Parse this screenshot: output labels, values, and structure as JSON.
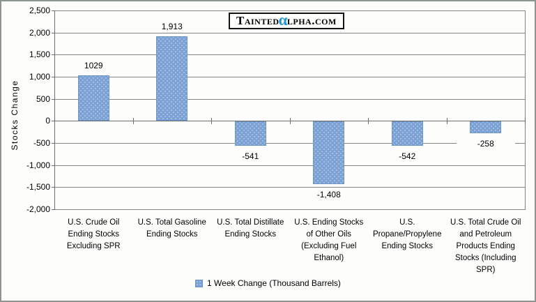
{
  "logo": {
    "prefix": "Tainted",
    "alpha": "α",
    "suffix": "lpha.com"
  },
  "chart_data": {
    "type": "bar",
    "title": "",
    "xlabel": "",
    "ylabel": "Stocks Change",
    "ylim": [
      -2000,
      2500
    ],
    "grid": true,
    "legend_position": "bottom",
    "legend_label": "1 Week Change (Thousand Barrels)",
    "y_ticks": [
      {
        "value": 2500,
        "label": "2,500"
      },
      {
        "value": 2000,
        "label": "2,000"
      },
      {
        "value": 1500,
        "label": "1,500"
      },
      {
        "value": 1000,
        "label": "1,000"
      },
      {
        "value": 500,
        "label": "500"
      },
      {
        "value": 0,
        "label": "0"
      },
      {
        "value": -500,
        "label": "-500"
      },
      {
        "value": -1000,
        "label": "-1,000"
      },
      {
        "value": -1500,
        "label": "-1,500"
      },
      {
        "value": -2000,
        "label": "-2,000"
      }
    ],
    "categories": [
      "U.S. Crude Oil\nEnding Stocks\nExcluding SPR",
      "U.S. Total Gasoline\nEnding Stocks",
      "U.S. Total Distillate\nEnding Stocks",
      "U.S. Ending Stocks\nof Other Oils\n(Excluding Fuel\nEthanol)",
      "U.S.\nPropane/Propylene\nEnding Stocks",
      "U.S. Total Crude Oil\nand Petroleum\nProducts Ending\nStocks (Including\nSPR)"
    ],
    "series": [
      {
        "name": "1 Week Change (Thousand Barrels)",
        "values": [
          1029,
          1913,
          -541,
          -1408,
          -542,
          -258
        ],
        "labels": [
          "1029",
          "1,913",
          "-541",
          "-1,408",
          "-542",
          "-258"
        ]
      }
    ],
    "colors": {
      "bar_fill": "#7CA2D5",
      "bar_dot": "#AEC6E3",
      "bar_border": "#6B94C7",
      "gridline": "#848484",
      "axis": "#6E6E6E",
      "text": "#000000",
      "logo_alpha_blue": "#1E96D2",
      "frame_border": "#8E948E"
    }
  }
}
